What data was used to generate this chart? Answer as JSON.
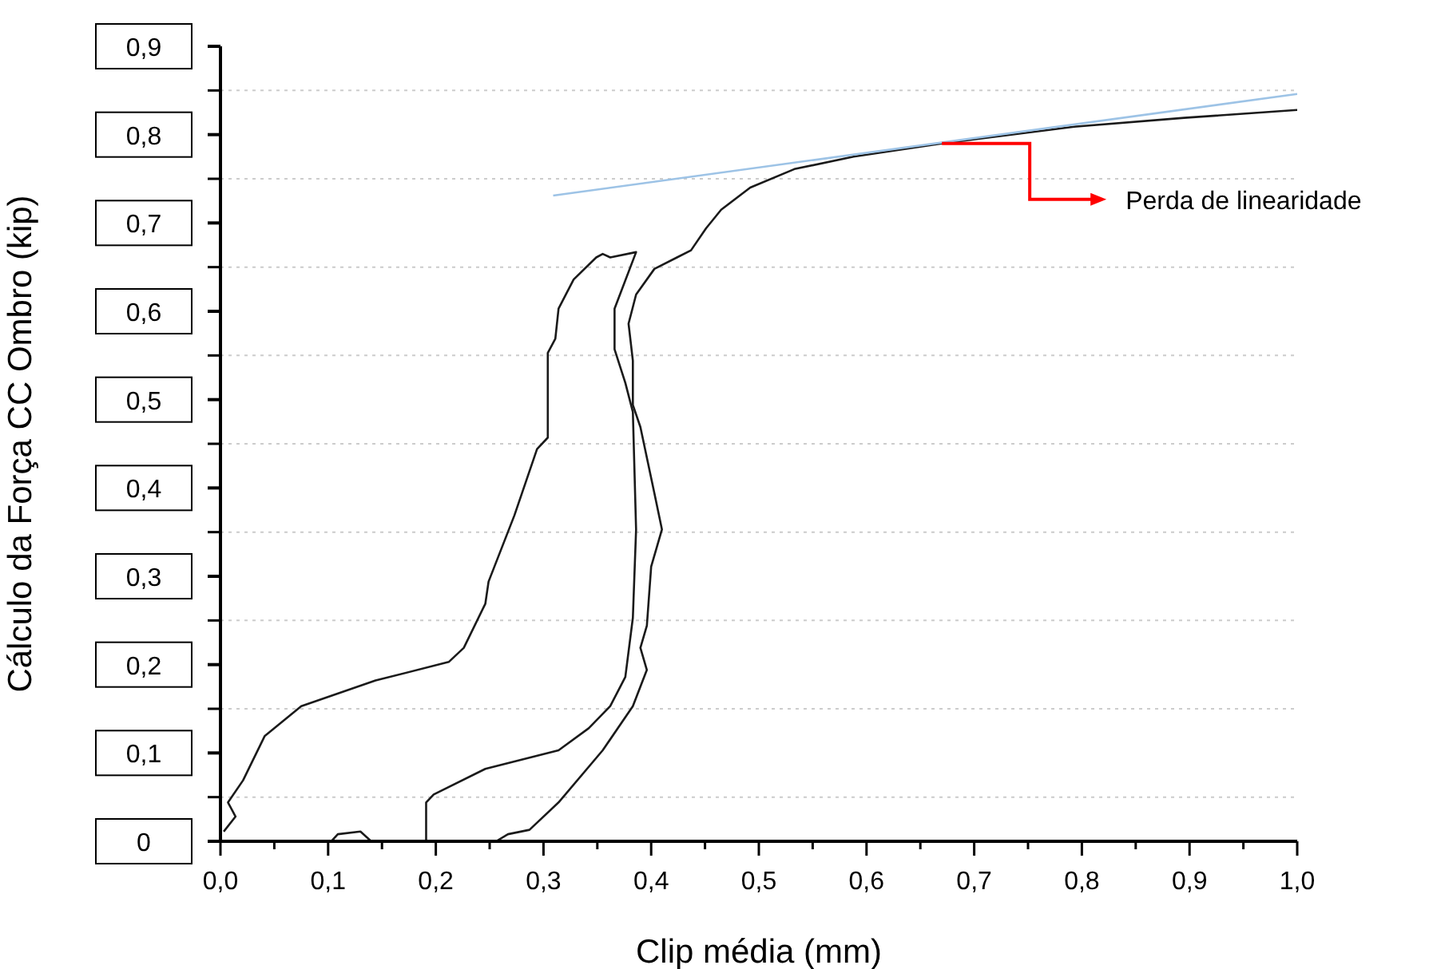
{
  "chart_data": {
    "type": "line",
    "xlabel": "Clip média (mm)",
    "ylabel": "Cálculo da Força CC Ombro (kip)",
    "xlim": [
      0,
      1
    ],
    "ylim": [
      0,
      0.9
    ],
    "xticks": [
      {
        "value": 0,
        "label": "0,0"
      },
      {
        "value": 0.05,
        "label": null
      },
      {
        "value": 0.1,
        "label": "0,1"
      },
      {
        "value": 0.15,
        "label": null
      },
      {
        "value": 0.2,
        "label": "0,2"
      },
      {
        "value": 0.25,
        "label": null
      },
      {
        "value": 0.3,
        "label": "0,3"
      },
      {
        "value": 0.35,
        "label": null
      },
      {
        "value": 0.4,
        "label": "0,4"
      },
      {
        "value": 0.45,
        "label": null
      },
      {
        "value": 0.5,
        "label": "0,5"
      },
      {
        "value": 0.55,
        "label": null
      },
      {
        "value": 0.6,
        "label": "0,6"
      },
      {
        "value": 0.65,
        "label": null
      },
      {
        "value": 0.7,
        "label": "0,7"
      },
      {
        "value": 0.75,
        "label": null
      },
      {
        "value": 0.8,
        "label": "0,8"
      },
      {
        "value": 0.85,
        "label": null
      },
      {
        "value": 0.9,
        "label": "0,9"
      },
      {
        "value": 0.95,
        "label": null
      },
      {
        "value": 1,
        "label": "1,0"
      }
    ],
    "yticks": [
      {
        "value": 0,
        "label": "0"
      },
      {
        "value": 0.05,
        "label": null
      },
      {
        "value": 0.1,
        "label": "0,1"
      },
      {
        "value": 0.15,
        "label": null
      },
      {
        "value": 0.2,
        "label": "0,2"
      },
      {
        "value": 0.25,
        "label": null
      },
      {
        "value": 0.3,
        "label": "0,3"
      },
      {
        "value": 0.35,
        "label": null
      },
      {
        "value": 0.4,
        "label": "0,4"
      },
      {
        "value": 0.45,
        "label": null
      },
      {
        "value": 0.5,
        "label": "0,5"
      },
      {
        "value": 0.55,
        "label": null
      },
      {
        "value": 0.6,
        "label": "0,6"
      },
      {
        "value": 0.65,
        "label": null
      },
      {
        "value": 0.7,
        "label": "0,7"
      },
      {
        "value": 0.75,
        "label": null
      },
      {
        "value": 0.8,
        "label": "0,8"
      },
      {
        "value": 0.85,
        "label": null
      },
      {
        "value": 0.9,
        "label": "0,9"
      }
    ],
    "grid": "y",
    "marker": "none",
    "line_style": "solid",
    "series": [
      {
        "color": "#1a1a1a",
        "x": [
          0.003,
          0.014,
          0.007,
          0.021,
          0.041,
          0.075,
          0.144,
          0.212,
          0.226,
          0.246,
          0.249,
          0.273,
          0.294,
          0.304,
          0.304,
          0.311,
          0.314,
          0.328,
          0.349,
          0.355,
          0.362,
          0.386,
          0.366,
          0.366,
          0.376,
          0.383,
          0.386,
          0.383,
          0.376,
          0.362,
          0.342,
          0.314,
          0.246,
          0.198,
          0.191,
          0.191
        ],
        "values": [
          0.011,
          0.028,
          0.044,
          0.069,
          0.119,
          0.153,
          0.182,
          0.203,
          0.219,
          0.269,
          0.294,
          0.369,
          0.444,
          0.457,
          0.553,
          0.569,
          0.603,
          0.636,
          0.661,
          0.665,
          0.661,
          0.667,
          0.603,
          0.557,
          0.519,
          0.486,
          0.353,
          0.253,
          0.186,
          0.153,
          0.128,
          0.103,
          0.082,
          0.053,
          0.044,
          0
        ]
      },
      {
        "color": "#1a1a1a",
        "x": [
          0.103,
          0.109,
          0.13,
          0.14
        ],
        "values": [
          0,
          0.008,
          0.011,
          0
        ]
      },
      {
        "color": "#1a1a1a",
        "x": [
          0.256,
          0.267,
          0.287,
          0.314,
          0.355,
          0.383,
          0.396,
          0.39,
          0.396,
          0.4,
          0.41,
          0.403,
          0.39,
          0.383,
          0.383,
          0.379,
          0.386,
          0.403,
          0.424,
          0.437,
          0.451,
          0.465,
          0.492,
          0.533,
          0.588,
          0.67,
          0.793,
          0.895,
          1.0
        ],
        "values": [
          0,
          0.008,
          0.013,
          0.044,
          0.103,
          0.153,
          0.194,
          0.219,
          0.244,
          0.311,
          0.353,
          0.394,
          0.469,
          0.494,
          0.544,
          0.586,
          0.619,
          0.648,
          0.661,
          0.669,
          0.694,
          0.715,
          0.74,
          0.761,
          0.775,
          0.79,
          0.809,
          0.819,
          0.828
        ]
      },
      {
        "color": "#9dc3e6",
        "x": [
          0.309,
          1.0
        ],
        "values": [
          0.731,
          0.846
        ]
      }
    ],
    "annotations": [
      {
        "text": "Perda de linearidade",
        "x": 0.67,
        "y": 0.79
      }
    ]
  }
}
